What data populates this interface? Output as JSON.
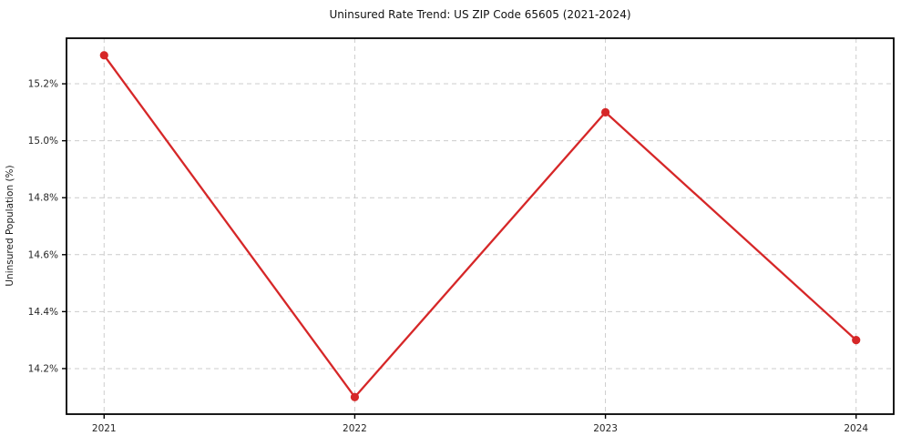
{
  "chart_data": {
    "type": "line",
    "title": "Uninsured Rate Trend: US ZIP Code 65605 (2021-2024)",
    "xlabel": "",
    "ylabel": "Uninsured Population (%)",
    "categories": [
      "2021",
      "2022",
      "2023",
      "2024"
    ],
    "x": [
      2021,
      2022,
      2023,
      2024
    ],
    "series": [
      {
        "name": "Uninsured Rate",
        "values": [
          15.3,
          14.1,
          15.1,
          14.3
        ]
      }
    ],
    "xlim": [
      2020.85,
      2024.15
    ],
    "ylim": [
      14.04,
      15.36
    ],
    "yticks": [
      14.2,
      14.4,
      14.6,
      14.8,
      15.0,
      15.2
    ],
    "ytick_labels": [
      "14.2%",
      "14.4%",
      "14.6%",
      "14.8%",
      "15.0%",
      "15.2%"
    ],
    "xtick_labels": [
      "2021",
      "2022",
      "2023",
      "2024"
    ],
    "grid": true,
    "grid_style": "dashed",
    "legend": "none",
    "colors": {
      "line": "#d62728",
      "marker": "#d62728",
      "grid": "#cccccc",
      "spine": "#000000",
      "background": "#ffffff",
      "text": "#1a1a1a"
    }
  }
}
